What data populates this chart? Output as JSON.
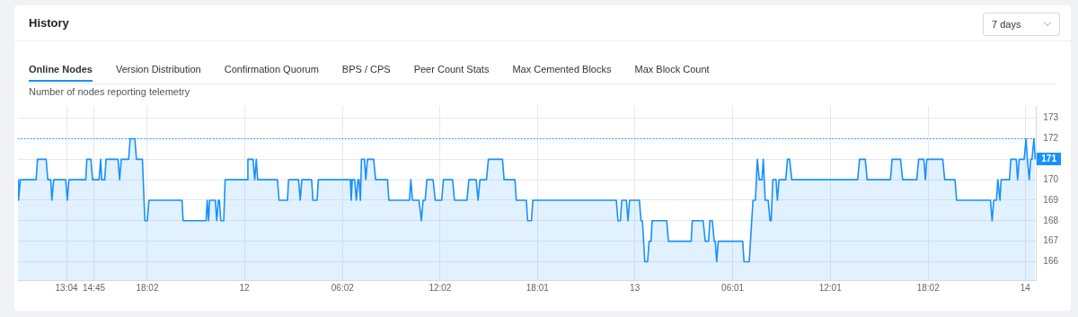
{
  "chart_data": {
    "type": "area",
    "title": "History",
    "subtitle": "Number of nodes reporting telemetry",
    "annotations": [
      "7 days",
      "Online Nodes",
      "Version Distribution",
      "Confirmation Quorum",
      "BPS / CPS",
      "Peer Count Stats",
      "Max Cemented Blocks",
      "Max Block Count",
      "171"
    ],
    "x": [
      "--01-11T10:05",
      "--01-11T10:07",
      "--01-11T10:14",
      "--01-11T11:12",
      "--01-11T11:17",
      "--01-11T11:49",
      "--01-11T11:55",
      "--01-11T12:06",
      "--01-11T12:10",
      "--01-11T12:17",
      "--01-11T13:01",
      "--01-11T13:07",
      "--01-11T13:13",
      "--01-11T14:15",
      "--01-11T14:19",
      "--01-11T14:34",
      "--01-11T14:40",
      "--01-11T15:04",
      "--01-11T15:10",
      "--01-11T15:14",
      "--01-11T15:25",
      "--01-11T15:30",
      "--01-11T16:14",
      "--01-11T16:20",
      "--01-11T16:26",
      "--01-11T16:53",
      "--01-11T16:59",
      "--01-11T17:16",
      "--01-11T17:22",
      "--01-11T17:44",
      "--01-11T17:53",
      "--01-11T18:02",
      "--01-11T18:08",
      "--01-11T20:10",
      "--01-11T20:14",
      "--01-11T21:39",
      "--01-11T21:43",
      "--01-11T21:48",
      "--01-11T21:52",
      "--01-11T22:13",
      "--01-11T22:18",
      "--01-11T22:24",
      "--01-11T22:28",
      "--01-11T22:33",
      "--01-11T22:44",
      "--01-11T22:49",
      "--01-12T00:10",
      "--01-12T00:13",
      "--01-12T00:32",
      "--01-12T00:38",
      "--01-12T00:44",
      "--01-12T00:49",
      "--01-12T02:02",
      "--01-12T02:08",
      "--01-12T02:39",
      "--01-12T02:43",
      "--01-12T03:20",
      "--01-12T03:26",
      "--01-12T03:32",
      "--01-12T04:08",
      "--01-12T04:13",
      "--01-12T04:28",
      "--01-12T04:33",
      "--01-12T06:31",
      "--01-12T06:34",
      "--01-12T06:38",
      "--01-12T06:47",
      "--01-12T06:53",
      "--01-12T06:59",
      "--01-12T07:03",
      "--01-12T07:08",
      "--01-12T07:12",
      "--01-12T07:23",
      "--01-12T07:28",
      "--01-12T07:34",
      "--01-12T07:57",
      "--01-12T08:04",
      "--01-12T08:48",
      "--01-12T08:53",
      "--01-12T10:09",
      "--01-12T10:14",
      "--01-12T10:20",
      "--01-12T10:44",
      "--01-12T10:53",
      "--01-12T10:59",
      "--01-12T11:07",
      "--01-12T11:13",
      "--01-12T11:36",
      "--01-12T11:44",
      "--01-12T12:08",
      "--01-12T12:14",
      "--01-12T12:48",
      "--01-12T12:55",
      "--01-12T13:41",
      "--01-12T13:48",
      "--01-12T14:15",
      "--01-12T14:22",
      "--01-12T14:29",
      "--01-12T14:53",
      "--01-12T15:00",
      "--01-12T15:52",
      "--01-12T15:58",
      "--01-12T16:38",
      "--01-12T16:43",
      "--01-12T17:20",
      "--01-12T17:25",
      "--01-12T17:39",
      "--01-12T17:44",
      "--01-12T22:52",
      "--01-12T22:58",
      "--01-12T23:07",
      "--01-12T23:12",
      "--01-12T23:29",
      "--01-12T23:35",
      "--01-12T23:41",
      "--01-13T00:17",
      "--01-13T00:23",
      "--01-13T00:28",
      "--01-13T00:37",
      "--01-13T00:47",
      "--01-13T00:53",
      "--01-13T01:00",
      "--01-13T01:04",
      "--01-13T01:58",
      "--01-13T02:04",
      "--01-13T03:28",
      "--01-13T03:32",
      "--01-13T04:12",
      "--01-13T04:20",
      "--01-13T04:32",
      "--01-13T04:37",
      "--01-13T04:46",
      "--01-13T04:53",
      "--01-13T04:57",
      "--01-13T05:02",
      "--01-13T05:08",
      "--01-13T06:38",
      "--01-13T06:43",
      "--01-13T07:02",
      "--01-13T07:16",
      "--01-13T07:25",
      "--01-13T07:32",
      "--01-13T07:39",
      "--01-13T07:49",
      "--01-13T07:54",
      "--01-13T08:01",
      "--01-13T08:12",
      "--01-13T08:19",
      "--01-13T08:23",
      "--01-13T08:29",
      "--01-13T08:41",
      "--01-13T08:46",
      "--01-13T08:52",
      "--01-13T09:17",
      "--01-13T09:23",
      "--01-13T09:31",
      "--01-13T09:39",
      "--01-13T13:42",
      "--01-13T13:49",
      "--01-13T14:10",
      "--01-13T14:17",
      "--01-13T15:43",
      "--01-13T15:49",
      "--01-13T16:20",
      "--01-13T16:28",
      "--01-13T17:20",
      "--01-13T17:27",
      "--01-13T17:46",
      "--01-13T17:52",
      "--01-13T17:57",
      "--01-13T18:56",
      "--01-13T19:03",
      "--01-13T19:41",
      "--01-13T19:47",
      "--01-13T21:52",
      "--01-13T21:58",
      "--01-13T22:04",
      "--01-13T22:14",
      "--01-13T22:19",
      "--01-13T22:27",
      "--01-13T22:31",
      "--01-13T23:02",
      "--01-13T23:07",
      "--01-13T23:27",
      "--01-13T23:32",
      "--01-13T23:38",
      "--01-13T23:56",
      "--01-14T00:03",
      "--01-14T00:08",
      "--01-14T00:15",
      "--01-14T00:20",
      "--01-14T00:25",
      "--01-14T00:32",
      "--01-14T00:37"
    ],
    "values": [
      170,
      169,
      170,
      170,
      171,
      171,
      170,
      170,
      169,
      170,
      170,
      169,
      170,
      170,
      171,
      171,
      170,
      170,
      171,
      170,
      170,
      171,
      171,
      170,
      171,
      171,
      172,
      172,
      171,
      171,
      168,
      168,
      169,
      169,
      168,
      168,
      169,
      168,
      169,
      169,
      168,
      169,
      169,
      168,
      168,
      170,
      170,
      171,
      171,
      170,
      171,
      170,
      170,
      169,
      169,
      170,
      170,
      169,
      170,
      170,
      169,
      169,
      170,
      170,
      169,
      170,
      170,
      169,
      170,
      170,
      169,
      171,
      171,
      170,
      171,
      171,
      170,
      170,
      169,
      169,
      170,
      169,
      169,
      168,
      169,
      169,
      170,
      170,
      169,
      169,
      170,
      170,
      169,
      169,
      170,
      170,
      169,
      170,
      170,
      171,
      171,
      170,
      170,
      169,
      169,
      168,
      168,
      169,
      169,
      168,
      168,
      169,
      169,
      168,
      169,
      169,
      168,
      168,
      166,
      166,
      167,
      167,
      168,
      168,
      167,
      167,
      168,
      168,
      167,
      167,
      168,
      168,
      167,
      167,
      166,
      167,
      167,
      166,
      166,
      169,
      169,
      171,
      170,
      170,
      171,
      169,
      169,
      168,
      168,
      170,
      170,
      169,
      170,
      170,
      171,
      171,
      170,
      170,
      171,
      171,
      170,
      170,
      171,
      171,
      170,
      170,
      171,
      171,
      170,
      171,
      171,
      170,
      170,
      169,
      169,
      168,
      169,
      169,
      170,
      169,
      170,
      170,
      171,
      171,
      170,
      171,
      171,
      172,
      171,
      170,
      171,
      171,
      172,
      171
    ],
    "color": "#1890ff",
    "xlim": [
      "--01-11T10:05",
      "--01-14T00:40"
    ],
    "xticks": [
      {
        "value": "--01-11T13:04",
        "label": "13:04"
      },
      {
        "value": "--01-11T14:45",
        "label": "14:45"
      },
      {
        "value": "--01-11T18:02",
        "label": "18:02"
      },
      {
        "value": "--01-12T00:00",
        "label": "12"
      },
      {
        "value": "--01-12T06:02",
        "label": "06:02"
      },
      {
        "value": "--01-12T12:02",
        "label": "12:02"
      },
      {
        "value": "--01-12T18:01",
        "label": "18:01"
      },
      {
        "value": "--01-13T00:00",
        "label": "13"
      },
      {
        "value": "--01-13T06:01",
        "label": "06:01"
      },
      {
        "value": "--01-13T12:01",
        "label": "12:01"
      },
      {
        "value": "--01-13T18:02",
        "label": "18:02"
      },
      {
        "value": "--01-14T00:00",
        "label": "14"
      }
    ],
    "ylim": [
      165.1,
      173.6
    ],
    "yticks": [
      166,
      167,
      168,
      169,
      170,
      171,
      172,
      173
    ],
    "ref_lines": [
      {
        "axis": "y",
        "value": 172,
        "color": "#1890ff",
        "line_style": "dotted"
      }
    ],
    "grid": true,
    "legend": false,
    "marker": "none"
  }
}
